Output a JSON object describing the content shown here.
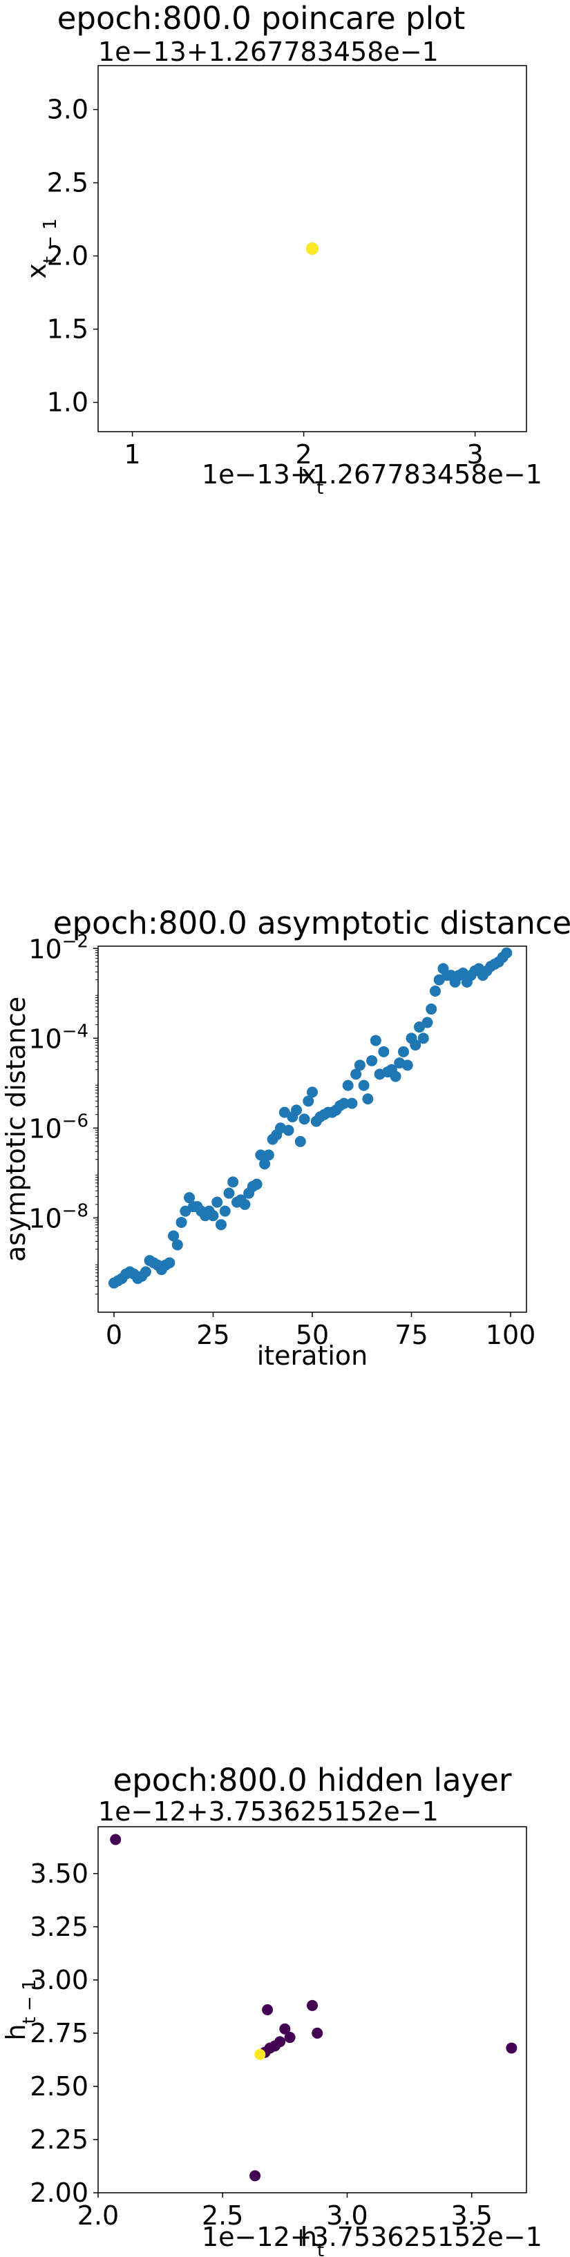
{
  "chart_data": [
    {
      "type": "scatter",
      "title": "epoch:800.0 poincare plot",
      "xlabel": "x_t",
      "ylabel": "x_{t-1}",
      "x_offset_text": "1e−13+1.267783458e−1",
      "y_offset_text": "1e−13+1.267783458e−1",
      "xlim": [
        0.8,
        3.3
      ],
      "ylim": [
        0.8,
        3.3
      ],
      "xticks": [
        1,
        2,
        3
      ],
      "xtick_labels": [
        "1",
        "2",
        "3"
      ],
      "yticks": [
        1.0,
        1.5,
        2.0,
        2.5,
        3.0
      ],
      "ytick_labels": [
        "1.0",
        "1.5",
        "2.0",
        "2.5",
        "3.0"
      ],
      "points": [
        {
          "x": 2.05,
          "y": 2.05,
          "color": "#fde725"
        }
      ],
      "grid": false
    },
    {
      "type": "scatter",
      "title": "epoch:800.0 asymptotic distance",
      "xlabel": "iteration",
      "ylabel": "asymptotic distance",
      "yscale": "log",
      "xlim": [
        -4,
        104
      ],
      "ylim_exp": [
        -10.1,
        -1.95
      ],
      "xticks": [
        0,
        25,
        50,
        75,
        100
      ],
      "xtick_labels": [
        "0",
        "25",
        "50",
        "75",
        "100"
      ],
      "yticks_exp": [
        -8,
        -6,
        -4,
        -2
      ],
      "color": "#1f77b4",
      "x": [
        0,
        1,
        2,
        3,
        4,
        5,
        6,
        7,
        8,
        9,
        10,
        11,
        12,
        13,
        14,
        15,
        16,
        17,
        18,
        19,
        20,
        21,
        22,
        23,
        24,
        25,
        26,
        27,
        28,
        29,
        30,
        31,
        32,
        33,
        34,
        35,
        36,
        37,
        38,
        39,
        40,
        41,
        42,
        43,
        44,
        45,
        46,
        47,
        48,
        49,
        50,
        51,
        52,
        53,
        54,
        55,
        56,
        57,
        58,
        59,
        60,
        61,
        62,
        63,
        64,
        65,
        66,
        67,
        68,
        69,
        70,
        71,
        72,
        73,
        74,
        75,
        76,
        77,
        78,
        79,
        80,
        81,
        82,
        83,
        84,
        85,
        86,
        87,
        88,
        89,
        90,
        91,
        92,
        93,
        94,
        95,
        96,
        97,
        98,
        99
      ],
      "y_exp": [
        -9.45,
        -9.4,
        -9.35,
        -9.25,
        -9.2,
        -9.25,
        -9.35,
        -9.3,
        -9.2,
        -8.95,
        -9.0,
        -9.05,
        -9.15,
        -9.05,
        -9.0,
        -8.4,
        -8.6,
        -8.1,
        -7.85,
        -7.55,
        -7.75,
        -7.75,
        -7.85,
        -7.95,
        -7.85,
        -7.95,
        -7.65,
        -8.15,
        -7.85,
        -7.45,
        -7.2,
        -7.65,
        -7.6,
        -7.7,
        -7.45,
        -7.3,
        -7.25,
        -6.6,
        -6.8,
        -6.6,
        -6.25,
        -6.15,
        -6.0,
        -5.65,
        -6.05,
        -5.75,
        -5.6,
        -6.3,
        -5.8,
        -5.4,
        -5.2,
        -5.85,
        -5.75,
        -5.7,
        -5.65,
        -5.65,
        -5.6,
        -5.5,
        -5.45,
        -5.05,
        -5.45,
        -4.8,
        -4.6,
        -5.05,
        -5.35,
        -4.5,
        -4.05,
        -4.8,
        -4.3,
        -4.75,
        -4.7,
        -4.85,
        -4.55,
        -4.3,
        -4.6,
        -4.0,
        -4.15,
        -3.75,
        -4.0,
        -3.65,
        -3.35,
        -2.95,
        -2.7,
        -2.45,
        -2.6,
        -2.6,
        -2.75,
        -2.6,
        -2.55,
        -2.75,
        -2.6,
        -2.5,
        -2.45,
        -2.6,
        -2.5,
        -2.4,
        -2.35,
        -2.3,
        -2.2,
        -2.1
      ]
    },
    {
      "type": "scatter",
      "title": "epoch:800.0 hidden layer",
      "xlabel": "h_t",
      "ylabel": "h_{t-1}",
      "x_offset_text": "1e−12+3.753625152e−1",
      "y_offset_text": "1e−12+3.753625152e−1",
      "xlim": [
        2.0,
        3.72
      ],
      "ylim": [
        2.0,
        3.72
      ],
      "xticks": [
        2.0,
        2.5,
        3.0,
        3.5
      ],
      "xtick_labels": [
        "2.0",
        "2.5",
        "3.0",
        "3.5"
      ],
      "yticks": [
        2.0,
        2.25,
        2.5,
        2.75,
        3.0,
        3.25,
        3.5
      ],
      "ytick_labels": [
        "2.00",
        "2.25",
        "2.50",
        "2.75",
        "3.00",
        "3.25",
        "3.50"
      ],
      "points": [
        {
          "x": 2.07,
          "y": 3.66,
          "color": "#440154"
        },
        {
          "x": 2.63,
          "y": 2.08,
          "color": "#440154"
        },
        {
          "x": 2.68,
          "y": 2.86,
          "color": "#440154"
        },
        {
          "x": 2.86,
          "y": 2.88,
          "color": "#440154"
        },
        {
          "x": 2.88,
          "y": 2.75,
          "color": "#440154"
        },
        {
          "x": 3.66,
          "y": 2.68,
          "color": "#440154"
        },
        {
          "x": 2.75,
          "y": 2.77,
          "color": "#440154"
        },
        {
          "x": 2.77,
          "y": 2.73,
          "color": "#440154"
        },
        {
          "x": 2.73,
          "y": 2.71,
          "color": "#440154"
        },
        {
          "x": 2.71,
          "y": 2.69,
          "color": "#440154"
        },
        {
          "x": 2.69,
          "y": 2.68,
          "color": "#440154"
        },
        {
          "x": 2.67,
          "y": 2.66,
          "color": "#440154"
        },
        {
          "x": 2.65,
          "y": 2.65,
          "color": "#fde725"
        }
      ]
    }
  ]
}
